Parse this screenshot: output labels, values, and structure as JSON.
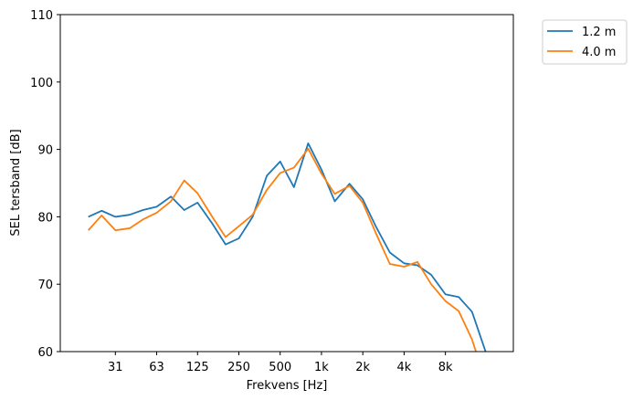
{
  "chart_data": {
    "type": "line",
    "title": "",
    "xlabel": "Frekvens [Hz]",
    "ylabel": "SEL tersband [dB]",
    "x_scale": "log",
    "xlim": [
      12.5,
      25000
    ],
    "ylim": [
      60,
      110
    ],
    "grid": false,
    "legend_position": "outside-top-right",
    "xticks": [
      {
        "value": 31.5,
        "label": "31"
      },
      {
        "value": 63,
        "label": "63"
      },
      {
        "value": 125,
        "label": "125"
      },
      {
        "value": 250,
        "label": "250"
      },
      {
        "value": 500,
        "label": "500"
      },
      {
        "value": 1000,
        "label": "1k"
      },
      {
        "value": 2000,
        "label": "2k"
      },
      {
        "value": 4000,
        "label": "4k"
      },
      {
        "value": 8000,
        "label": "8k"
      }
    ],
    "yticks": [
      60,
      70,
      80,
      90,
      100,
      110
    ],
    "x": [
      20,
      25,
      31.5,
      40,
      50,
      63,
      80,
      100,
      125,
      160,
      200,
      250,
      315,
      400,
      500,
      630,
      800,
      1000,
      1250,
      1600,
      2000,
      2500,
      3150,
      4000,
      5000,
      6300,
      8000,
      10000,
      12500,
      16000
    ],
    "series": [
      {
        "name": "1.2 m",
        "color": "#1f77b4",
        "values": [
          80.0,
          80.9,
          80.0,
          80.3,
          81.0,
          81.5,
          83.0,
          81.0,
          82.1,
          79.0,
          75.9,
          76.8,
          80.0,
          86.1,
          88.2,
          84.4,
          90.9,
          87.0,
          82.3,
          84.9,
          82.6,
          78.5,
          74.7,
          73.1,
          72.8,
          71.4,
          68.5,
          68.1,
          65.9,
          59.5
        ]
      },
      {
        "name": "4.0 m",
        "color": "#ff7f0e",
        "values": [
          78.0,
          80.2,
          78.0,
          78.3,
          79.6,
          80.6,
          82.3,
          85.4,
          83.5,
          80.0,
          77.0,
          78.6,
          80.3,
          84.0,
          86.5,
          87.3,
          90.1,
          86.4,
          83.4,
          84.6,
          82.1,
          77.5,
          73.0,
          72.6,
          73.3,
          70.0,
          67.5,
          66.0,
          61.8,
          55.0
        ]
      }
    ]
  }
}
